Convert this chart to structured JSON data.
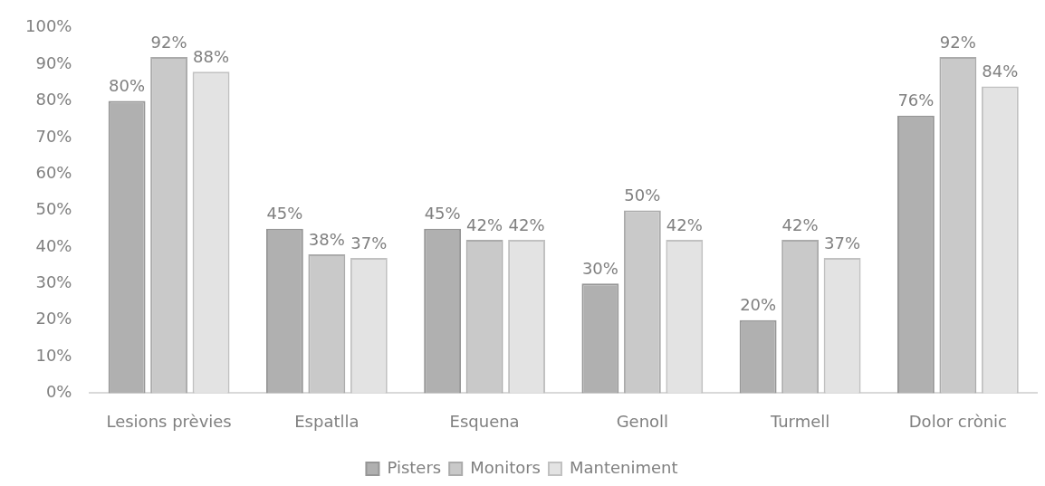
{
  "chart_data": {
    "type": "bar",
    "categories": [
      "Lesions prèvies",
      "Espatlla",
      "Esquena",
      "Genoll",
      "Turmell",
      "Dolor crònic"
    ],
    "series": [
      {
        "name": "Pisters",
        "color": "#b0b0b0",
        "values": [
          80,
          45,
          45,
          30,
          20,
          76
        ],
        "value_labels": [
          "80%",
          "45%",
          "45%",
          "30%",
          "20%",
          "76%"
        ]
      },
      {
        "name": "Monitors",
        "color": "#c9c9c9",
        "values": [
          92,
          38,
          42,
          50,
          42,
          92
        ],
        "value_labels": [
          "92%",
          "38%",
          "42%",
          "50%",
          "42%",
          "92%"
        ]
      },
      {
        "name": "Manteniment",
        "color": "#e3e3e3",
        "values": [
          88,
          37,
          42,
          42,
          37,
          84
        ],
        "value_labels": [
          "88%",
          "37%",
          "42%",
          "42%",
          "37%",
          "84%"
        ]
      }
    ],
    "ylim": [
      0,
      100
    ],
    "yticks": [
      {
        "value": 0,
        "label": "0%"
      },
      {
        "value": 10,
        "label": "10%"
      },
      {
        "value": 20,
        "label": "20%"
      },
      {
        "value": 30,
        "label": "30%"
      },
      {
        "value": 40,
        "label": "40%"
      },
      {
        "value": 50,
        "label": "50%"
      },
      {
        "value": 60,
        "label": "60%"
      },
      {
        "value": 70,
        "label": "70%"
      },
      {
        "value": 80,
        "label": "80%"
      },
      {
        "value": 90,
        "label": "90%"
      },
      {
        "value": 100,
        "label": "100%"
      }
    ],
    "grid": false,
    "legend": "bottom"
  }
}
